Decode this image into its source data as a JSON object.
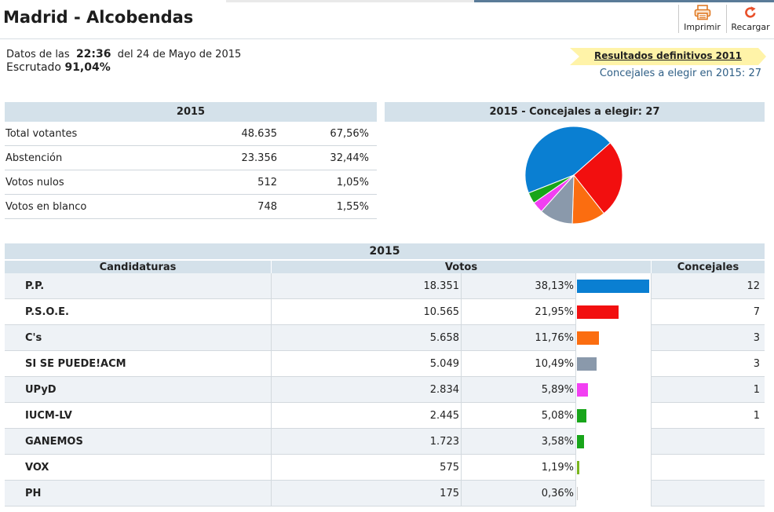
{
  "header": {
    "title": "Madrid - Alcobendas",
    "print_label": "Imprimir",
    "reload_label": "Recargar"
  },
  "info": {
    "data_prefix": "Datos de las",
    "time": "22:36",
    "date_text": "del 24 de Mayo de 2015",
    "scrutiny_label": "Escrutado",
    "scrutiny_value": "91,04%",
    "results_link": "Resultados definitivos 2011",
    "seats_to_elect": "Concejales a elegir en 2015: 27"
  },
  "colors": {
    "header_bg": "#d4e1ea",
    "ribbon": "#fff3a8",
    "link_blue": "#2f5f86"
  },
  "summary": {
    "year": "2015",
    "rows": [
      {
        "label": "Total votantes",
        "value": "48.635",
        "pct": "67,56%"
      },
      {
        "label": "Abstención",
        "value": "23.356",
        "pct": "32,44%"
      },
      {
        "label": "Votos nulos",
        "value": "512",
        "pct": "1,05%"
      },
      {
        "label": "Votos en blanco",
        "value": "748",
        "pct": "1,55%"
      }
    ]
  },
  "pie": {
    "title": "2015 - Concejales a elegir: 27"
  },
  "results": {
    "year": "2015",
    "col_parties": "Candidaturas",
    "col_votes": "Votos",
    "col_seats": "Concejales",
    "rows": [
      {
        "party": "P.P.",
        "votes": "18.351",
        "pct": "38,13%",
        "share": 38.13,
        "seats": "12",
        "color": "#0a7fd2"
      },
      {
        "party": "P.S.O.E.",
        "votes": "10.565",
        "pct": "21,95%",
        "share": 21.95,
        "seats": "7",
        "color": "#f20f0f"
      },
      {
        "party": "C's",
        "votes": "5.658",
        "pct": "11,76%",
        "share": 11.76,
        "seats": "3",
        "color": "#fb6d10"
      },
      {
        "party": "SI SE PUEDE!ACM",
        "votes": "5.049",
        "pct": "10,49%",
        "share": 10.49,
        "seats": "3",
        "color": "#8a99ab"
      },
      {
        "party": "UPyD",
        "votes": "2.834",
        "pct": "5,89%",
        "share": 5.89,
        "seats": "1",
        "color": "#f23ff2"
      },
      {
        "party": "IUCM-LV",
        "votes": "2.445",
        "pct": "5,08%",
        "share": 5.08,
        "seats": "1",
        "color": "#18a51a"
      },
      {
        "party": "GANEMOS",
        "votes": "1.723",
        "pct": "3,58%",
        "share": 3.58,
        "seats": "",
        "color": "#18a51a"
      },
      {
        "party": "VOX",
        "votes": "575",
        "pct": "1,19%",
        "share": 1.19,
        "seats": "",
        "color": "#7ab51d"
      },
      {
        "party": "PH",
        "votes": "175",
        "pct": "0,36%",
        "share": 0.36,
        "seats": "",
        "color": "#cccccc"
      }
    ]
  },
  "chart_data": {
    "type": "pie",
    "title": "2015 - Concejales a elegir: 27",
    "categories": [
      "P.P.",
      "P.S.O.E.",
      "C's",
      "SI SE PUEDE!ACM",
      "UPyD",
      "IUCM-LV"
    ],
    "values": [
      12,
      7,
      3,
      3,
      1,
      1
    ],
    "colors": [
      "#0a7fd2",
      "#f20f0f",
      "#fb6d10",
      "#8a99ab",
      "#f23ff2",
      "#18a51a"
    ]
  }
}
